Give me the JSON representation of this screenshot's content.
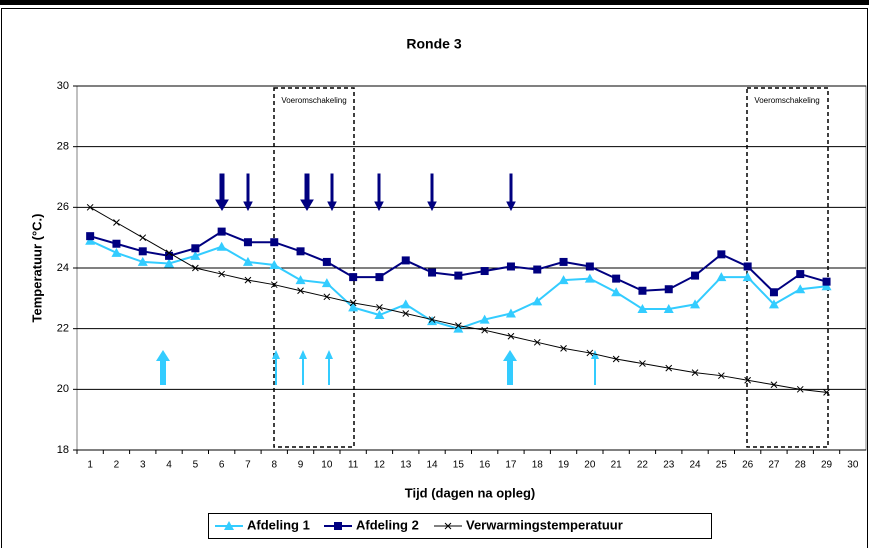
{
  "chart_data": {
    "type": "line",
    "title": "Ronde 3",
    "x_label": "Tijd (dagen na opleg)",
    "y_label": "Temperatuur (°C.)",
    "annotations": [
      "Voeromschakeling",
      "Voeromschakeling"
    ],
    "categories": [
      1,
      2,
      3,
      4,
      5,
      6,
      7,
      8,
      9,
      10,
      11,
      12,
      13,
      14,
      15,
      16,
      17,
      18,
      19,
      20,
      21,
      22,
      23,
      24,
      25,
      26,
      27,
      28,
      29,
      30
    ],
    "ylim": [
      18,
      30
    ],
    "yticks": [
      18,
      20,
      22,
      24,
      26,
      28,
      30
    ],
    "grid": true,
    "legend": "bottom",
    "series": [
      {
        "name": "Afdeling 1",
        "color": "#33ccff",
        "marker": "triangle",
        "values": [
          24.9,
          24.5,
          24.2,
          24.15,
          24.4,
          24.7,
          24.2,
          24.1,
          23.6,
          23.5,
          22.7,
          22.45,
          22.8,
          22.25,
          22.0,
          22.3,
          22.5,
          22.9,
          23.6,
          23.65,
          23.2,
          22.65,
          22.65,
          22.8,
          23.7,
          23.7,
          22.8,
          23.3,
          23.4,
          null
        ]
      },
      {
        "name": "Afdeling 2",
        "color": "#000080",
        "marker": "square",
        "values": [
          25.05,
          24.8,
          24.55,
          24.4,
          24.65,
          25.2,
          24.85,
          24.85,
          24.55,
          24.2,
          23.7,
          23.7,
          24.25,
          23.85,
          23.75,
          23.9,
          24.05,
          23.95,
          24.2,
          24.05,
          23.65,
          23.25,
          23.3,
          23.75,
          24.45,
          24.05,
          23.2,
          23.8,
          23.55,
          null
        ]
      },
      {
        "name": "Verwarmingstemperatuur",
        "color": "#000000",
        "marker": "x",
        "values": [
          26.0,
          25.5,
          25.0,
          24.5,
          24.0,
          23.8,
          23.6,
          23.45,
          23.25,
          23.05,
          22.85,
          22.7,
          22.5,
          22.3,
          22.1,
          21.95,
          21.75,
          21.55,
          21.35,
          21.2,
          21.0,
          20.85,
          20.7,
          20.55,
          20.45,
          20.3,
          20.15,
          20.0,
          19.9,
          null
        ]
      }
    ]
  }
}
